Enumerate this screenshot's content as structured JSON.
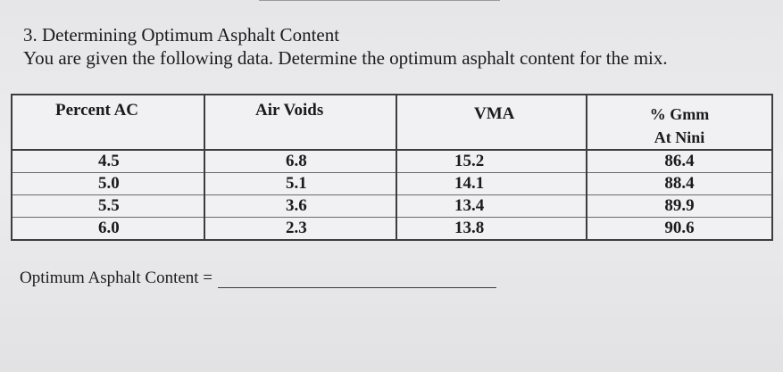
{
  "problem": {
    "title": "3. Determining Optimum Asphalt Content",
    "instructions": "You are given the following data.  Determine the optimum asphalt content for the mix."
  },
  "table": {
    "headers": [
      "Percent AC",
      "Air Voids",
      "VMA"
    ],
    "gmm_header_line1": "% Gmm",
    "gmm_header_line2": "At Nini",
    "rows": [
      [
        "4.5",
        "6.8",
        "15.2",
        "86.4"
      ],
      [
        "5.0",
        "5.1",
        "14.1",
        "88.4"
      ],
      [
        "5.5",
        "3.6",
        "13.4",
        "89.9"
      ],
      [
        "6.0",
        "2.3",
        "13.8",
        "90.6"
      ]
    ]
  },
  "answer": {
    "label": "Optimum Asphalt Content ="
  }
}
